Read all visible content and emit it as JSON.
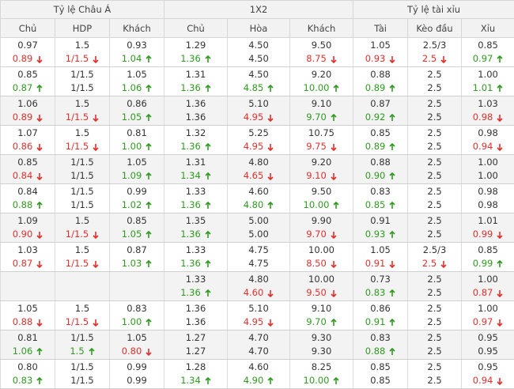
{
  "groups": [
    "Tỷ lệ Châu Á",
    "1X2",
    "Tỷ lệ tài xỉu"
  ],
  "columns": [
    "Chủ",
    "HDP",
    "Khách",
    "Chủ",
    "Hòa",
    "Khách",
    "Tài",
    "Kèo đầu",
    "Xỉu"
  ],
  "rows": [
    {
      "open": [
        "0.97",
        "1.5",
        "0.93",
        "1.29",
        "4.50",
        "9.50",
        "1.05",
        "2.5/3",
        "0.85"
      ],
      "current": [
        {
          "text": "0.89",
          "trend": "down"
        },
        {
          "text": "1/1.5",
          "trend": "down"
        },
        {
          "text": "1.04",
          "trend": "up"
        },
        {
          "text": "1.36",
          "trend": "up"
        },
        {
          "text": "4.50",
          "trend": null
        },
        {
          "text": "8.75",
          "trend": "down"
        },
        {
          "text": "0.93",
          "trend": "down"
        },
        {
          "text": "2.5",
          "trend": "down"
        },
        {
          "text": "0.97",
          "trend": "up"
        }
      ]
    },
    {
      "open": [
        "0.85",
        "1/1.5",
        "1.05",
        "1.31",
        "4.50",
        "9.20",
        "0.88",
        "2.5",
        "1.00"
      ],
      "current": [
        {
          "text": "0.87",
          "trend": "up"
        },
        {
          "text": "1/1.5",
          "trend": null
        },
        {
          "text": "1.06",
          "trend": "up"
        },
        {
          "text": "1.36",
          "trend": "up"
        },
        {
          "text": "4.85",
          "trend": "up"
        },
        {
          "text": "10.00",
          "trend": "up"
        },
        {
          "text": "0.89",
          "trend": "up"
        },
        {
          "text": "2.5",
          "trend": null
        },
        {
          "text": "1.01",
          "trend": "up"
        }
      ]
    },
    {
      "open": [
        "1.06",
        "1.5",
        "0.86",
        "1.36",
        "5.10",
        "9.10",
        "0.87",
        "2.5",
        "1.03"
      ],
      "current": [
        {
          "text": "0.89",
          "trend": "down"
        },
        {
          "text": "1/1.5",
          "trend": "down"
        },
        {
          "text": "1.05",
          "trend": "up"
        },
        {
          "text": "1.36",
          "trend": null
        },
        {
          "text": "4.95",
          "trend": "down"
        },
        {
          "text": "9.70",
          "trend": "up"
        },
        {
          "text": "0.92",
          "trend": "up"
        },
        {
          "text": "2.5",
          "trend": null
        },
        {
          "text": "0.98",
          "trend": "down"
        }
      ]
    },
    {
      "open": [
        "1.07",
        "1.5",
        "0.81",
        "1.32",
        "5.25",
        "10.75",
        "0.85",
        "2.5",
        "0.98"
      ],
      "current": [
        {
          "text": "0.86",
          "trend": "down"
        },
        {
          "text": "1/1.5",
          "trend": "down"
        },
        {
          "text": "1.00",
          "trend": "up"
        },
        {
          "text": "1.36",
          "trend": "up"
        },
        {
          "text": "4.95",
          "trend": "down"
        },
        {
          "text": "9.75",
          "trend": "down"
        },
        {
          "text": "0.89",
          "trend": "up"
        },
        {
          "text": "2.5",
          "trend": null
        },
        {
          "text": "0.94",
          "trend": "down"
        }
      ]
    },
    {
      "open": [
        "0.85",
        "1/1.5",
        "1.05",
        "1.31",
        "4.80",
        "9.20",
        "0.88",
        "2.5",
        "1.00"
      ],
      "current": [
        {
          "text": "0.84",
          "trend": "down"
        },
        {
          "text": "1/1.5",
          "trend": null
        },
        {
          "text": "1.09",
          "trend": "up"
        },
        {
          "text": "1.34",
          "trend": "up"
        },
        {
          "text": "4.65",
          "trend": "down"
        },
        {
          "text": "9.10",
          "trend": "down"
        },
        {
          "text": "0.90",
          "trend": "up"
        },
        {
          "text": "2.5",
          "trend": null
        },
        {
          "text": "1.00",
          "trend": null
        }
      ]
    },
    {
      "open": [
        "0.84",
        "1/1.5",
        "0.99",
        "1.33",
        "4.60",
        "9.50",
        "0.83",
        "2.5",
        "0.98"
      ],
      "current": [
        {
          "text": "0.88",
          "trend": "up"
        },
        {
          "text": "1/1.5",
          "trend": null
        },
        {
          "text": "1.02",
          "trend": "up"
        },
        {
          "text": "1.36",
          "trend": "up"
        },
        {
          "text": "4.80",
          "trend": "up"
        },
        {
          "text": "10.00",
          "trend": "up"
        },
        {
          "text": "0.85",
          "trend": "up"
        },
        {
          "text": "2.5",
          "trend": null
        },
        {
          "text": "0.98",
          "trend": null
        }
      ]
    },
    {
      "open": [
        "1.09",
        "1.5",
        "0.85",
        "1.35",
        "5.00",
        "9.90",
        "0.91",
        "2.5",
        "1.01"
      ],
      "current": [
        {
          "text": "0.90",
          "trend": "down"
        },
        {
          "text": "1/1.5",
          "trend": "down"
        },
        {
          "text": "1.05",
          "trend": "up"
        },
        {
          "text": "1.36",
          "trend": "up"
        },
        {
          "text": "5.00",
          "trend": null
        },
        {
          "text": "9.70",
          "trend": "down"
        },
        {
          "text": "0.93",
          "trend": "up"
        },
        {
          "text": "2.5",
          "trend": null
        },
        {
          "text": "0.99",
          "trend": "down"
        }
      ]
    },
    {
      "open": [
        "1.03",
        "1.5",
        "0.87",
        "1.33",
        "4.75",
        "10.00",
        "1.05",
        "2.5/3",
        "0.85"
      ],
      "current": [
        {
          "text": "0.87",
          "trend": "down"
        },
        {
          "text": "1/1.5",
          "trend": "down"
        },
        {
          "text": "1.03",
          "trend": "up"
        },
        {
          "text": "1.36",
          "trend": "up"
        },
        {
          "text": "4.75",
          "trend": null
        },
        {
          "text": "8.50",
          "trend": "down"
        },
        {
          "text": "0.91",
          "trend": "down"
        },
        {
          "text": "2.5",
          "trend": "down"
        },
        {
          "text": "0.99",
          "trend": "up"
        }
      ]
    },
    {
      "open": [
        null,
        null,
        null,
        "1.33",
        "4.80",
        "10.00",
        "0.73",
        "2.5",
        "1.00"
      ],
      "current": [
        null,
        null,
        null,
        {
          "text": "1.36",
          "trend": "up"
        },
        {
          "text": "4.60",
          "trend": "down"
        },
        {
          "text": "9.50",
          "trend": "down"
        },
        {
          "text": "0.83",
          "trend": "up"
        },
        {
          "text": "2.5",
          "trend": null
        },
        {
          "text": "0.87",
          "trend": "down"
        }
      ]
    },
    {
      "open": [
        "1.05",
        "1.5",
        "0.83",
        "1.36",
        "5.10",
        "9.10",
        "0.86",
        "2.5",
        "1.00"
      ],
      "current": [
        {
          "text": "0.88",
          "trend": "down"
        },
        {
          "text": "1/1.5",
          "trend": "down"
        },
        {
          "text": "1.00",
          "trend": "up"
        },
        {
          "text": "1.36",
          "trend": null
        },
        {
          "text": "4.95",
          "trend": "down"
        },
        {
          "text": "9.70",
          "trend": "up"
        },
        {
          "text": "0.91",
          "trend": "up"
        },
        {
          "text": "2.5",
          "trend": null
        },
        {
          "text": "0.97",
          "trend": "down"
        }
      ]
    },
    {
      "open": [
        "0.81",
        "1/1.5",
        "1.05",
        "1.27",
        "4.70",
        "9.30",
        "0.83",
        "2.5",
        "0.95"
      ],
      "current": [
        {
          "text": "1.06",
          "trend": "up"
        },
        {
          "text": "1.5",
          "trend": "up"
        },
        {
          "text": "0.80",
          "trend": "down"
        },
        {
          "text": "1.27",
          "trend": null
        },
        {
          "text": "4.70",
          "trend": null
        },
        {
          "text": "9.30",
          "trend": null
        },
        {
          "text": "0.88",
          "trend": "up"
        },
        {
          "text": "2.5",
          "trend": null
        },
        {
          "text": "0.95",
          "trend": null
        }
      ]
    },
    {
      "open": [
        "0.80",
        "1/1.5",
        "0.99",
        "1.28",
        "4.60",
        "8.25",
        "0.85",
        "2.5",
        "0.95"
      ],
      "current": [
        {
          "text": "0.83",
          "trend": "up"
        },
        {
          "text": "1/1.5",
          "trend": null
        },
        {
          "text": "0.99",
          "trend": null
        },
        {
          "text": "1.34",
          "trend": "up"
        },
        {
          "text": "4.90",
          "trend": "up"
        },
        {
          "text": "10.00",
          "trend": "up"
        },
        {
          "text": "0.85",
          "trend": null
        },
        {
          "text": "2.5",
          "trend": null
        },
        {
          "text": "0.94",
          "trend": "down"
        }
      ]
    }
  ]
}
